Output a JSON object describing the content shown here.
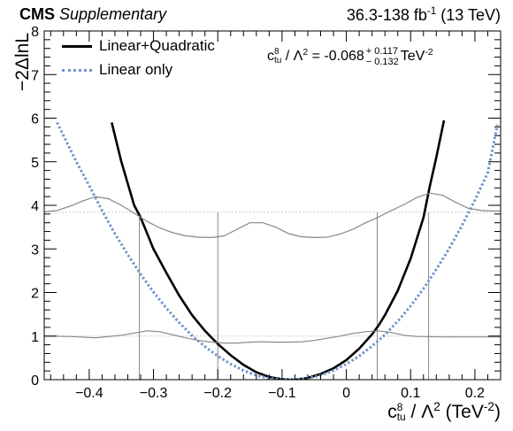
{
  "header": {
    "cms": "CMS",
    "supplementary": "Supplementary",
    "lumi_prefix": "36.3-138 fb",
    "lumi_exp": "-1",
    "lumi_suffix": " (13 TeV)"
  },
  "legend": {
    "lin_quad": "Linear+Quadratic",
    "lin_only": "Linear only"
  },
  "result": {
    "lhs_c": "c",
    "lhs_sup": "8",
    "lhs_sub": "tu",
    "lhs_rest": " / Λ",
    "lhs_exp": "2",
    "value": " = -0.068",
    "err_up": "+ 0.117",
    "err_down": "− 0.132",
    "unit": "TeV",
    "unit_exp": "-2"
  },
  "axes": {
    "ylabel": "−2ΔlnL",
    "xlabel_c": "c",
    "xlabel_sup": "8",
    "xlabel_sub": "tu",
    "xlabel_rest": " / Λ",
    "xlabel_exp": "2",
    "xlabel_unit": " (TeV",
    "xlabel_unit_exp": "-2",
    "xlabel_close": ")"
  },
  "colors": {
    "lin_quad": "#000000",
    "lin_only": "#6f95cf",
    "guide": "#888888",
    "ref_line": "#cccccc"
  },
  "chart_data": {
    "type": "line",
    "xlim": [
      -0.47,
      0.24
    ],
    "ylim": [
      0,
      8
    ],
    "x_ticks": [
      -0.4,
      -0.3,
      -0.2,
      -0.1,
      0,
      0.1,
      0.2
    ],
    "x_tick_labels": [
      "−0.4",
      "−0.3",
      "−0.2",
      "−0.1",
      "0",
      "0.1",
      "0.2"
    ],
    "y_ticks": [
      0,
      1,
      2,
      3,
      4,
      5,
      6,
      7,
      8
    ],
    "y_tick_labels": [
      "0",
      "1",
      "2",
      "3",
      "4",
      "5",
      "6",
      "7",
      "8"
    ],
    "reference_lines": [
      1,
      3.84
    ],
    "series": [
      {
        "name": "Linear+Quadratic",
        "style": "solid",
        "x": [
          -0.365,
          -0.35,
          -0.33,
          -0.32,
          -0.3,
          -0.28,
          -0.26,
          -0.24,
          -0.22,
          -0.2,
          -0.18,
          -0.16,
          -0.14,
          -0.12,
          -0.1,
          -0.08,
          -0.06,
          -0.04,
          -0.02,
          0.0,
          0.02,
          0.04,
          0.05,
          0.06,
          0.08,
          0.1,
          0.12,
          0.13,
          0.14,
          0.152
        ],
        "y": [
          5.9,
          5.0,
          4.0,
          3.72,
          3.0,
          2.45,
          1.93,
          1.48,
          1.12,
          0.82,
          0.56,
          0.34,
          0.17,
          0.06,
          0.01,
          0.0,
          0.04,
          0.13,
          0.26,
          0.45,
          0.71,
          1.04,
          1.24,
          1.48,
          2.04,
          2.78,
          3.72,
          4.45,
          5.1,
          5.95
        ]
      },
      {
        "name": "Linear only",
        "style": "dotted",
        "x": [
          -0.45,
          -0.42,
          -0.4,
          -0.38,
          -0.36,
          -0.34,
          -0.32,
          -0.3,
          -0.28,
          -0.26,
          -0.24,
          -0.22,
          -0.2,
          -0.18,
          -0.16,
          -0.14,
          -0.12,
          -0.1,
          -0.08,
          -0.06,
          -0.04,
          -0.02,
          0.0,
          0.02,
          0.04,
          0.06,
          0.08,
          0.1,
          0.12,
          0.14,
          0.16,
          0.18,
          0.2,
          0.22,
          0.235
        ],
        "y": [
          5.9,
          5.0,
          4.45,
          3.88,
          3.35,
          2.87,
          2.42,
          2.01,
          1.64,
          1.31,
          1.01,
          0.76,
          0.54,
          0.36,
          0.21,
          0.1,
          0.03,
          0.0,
          0.0,
          0.03,
          0.1,
          0.21,
          0.36,
          0.54,
          0.77,
          1.03,
          1.34,
          1.69,
          2.09,
          2.53,
          3.01,
          3.54,
          4.12,
          4.75,
          5.85
        ]
      },
      {
        "name": "",
        "style": "thin-gray",
        "x": [
          -0.47,
          -0.45,
          -0.43,
          -0.41,
          -0.39,
          -0.37,
          -0.35,
          -0.33,
          -0.31,
          -0.29,
          -0.27,
          -0.25,
          -0.23,
          -0.21,
          -0.19,
          -0.17,
          -0.15,
          -0.13,
          -0.11,
          -0.09,
          -0.07,
          -0.05,
          -0.03,
          -0.01,
          0.01,
          0.03,
          0.05,
          0.07,
          0.09,
          0.11,
          0.13,
          0.15,
          0.17,
          0.19,
          0.21,
          0.23,
          0.24
        ],
        "y": [
          3.85,
          3.88,
          3.98,
          4.1,
          4.2,
          4.15,
          4.0,
          3.82,
          3.63,
          3.48,
          3.37,
          3.3,
          3.27,
          3.26,
          3.3,
          3.45,
          3.6,
          3.6,
          3.5,
          3.35,
          3.28,
          3.26,
          3.27,
          3.34,
          3.45,
          3.6,
          3.73,
          3.88,
          4.02,
          4.18,
          4.28,
          4.23,
          4.07,
          3.93,
          3.88,
          3.87,
          3.87
        ]
      },
      {
        "name": "",
        "style": "thin-gray",
        "x": [
          -0.47,
          -0.43,
          -0.39,
          -0.35,
          -0.31,
          -0.29,
          -0.27,
          -0.25,
          -0.23,
          -0.21,
          -0.19,
          -0.17,
          -0.15,
          -0.13,
          -0.11,
          -0.09,
          -0.07,
          -0.05,
          -0.03,
          -0.01,
          0.01,
          0.03,
          0.05,
          0.07,
          0.09,
          0.11,
          0.15,
          0.19,
          0.24
        ],
        "y": [
          1.0,
          0.99,
          0.96,
          1.02,
          1.12,
          1.1,
          1.03,
          0.96,
          0.9,
          0.86,
          0.84,
          0.84,
          0.86,
          0.87,
          0.86,
          0.86,
          0.87,
          0.9,
          0.95,
          1.0,
          1.06,
          1.1,
          1.12,
          1.08,
          1.02,
          0.99,
          0.98,
          0.98,
          0.98
        ]
      }
    ],
    "interval_markers_x": [
      -0.322,
      -0.2,
      0.048,
      0.128
    ]
  }
}
